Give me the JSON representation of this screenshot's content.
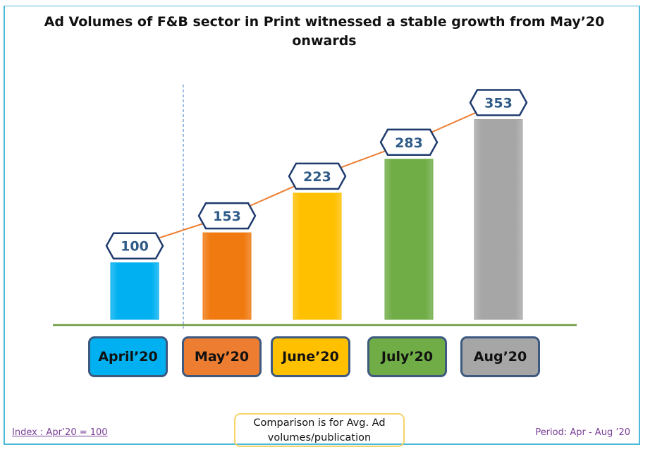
{
  "chart_data": {
    "type": "bar",
    "title": "Ad Volumes of F&B sector in Print witnessed a stable growth from May’20 onwards",
    "xlabel": "",
    "ylabel": "",
    "categories": [
      "April’20",
      "May’20",
      "June’20",
      "July’20",
      "Aug’20"
    ],
    "values": [
      100,
      153,
      223,
      283,
      353
    ],
    "value_labels": [
      "100",
      "153",
      "223",
      "283",
      "353"
    ],
    "bar_colors": [
      "#00b0f0",
      "#f07a10",
      "#ffc000",
      "#70ad47",
      "#a6a6a6"
    ],
    "line_color": "#ed7d31",
    "ylim": [
      0,
      400
    ],
    "grid": false,
    "legend": "none"
  },
  "notes": {
    "index": "Index : Apr’20 = 100",
    "comparison": "Comparison is for Avg. Ad volumes/publication",
    "period": "Period: Apr - Aug ’20"
  }
}
